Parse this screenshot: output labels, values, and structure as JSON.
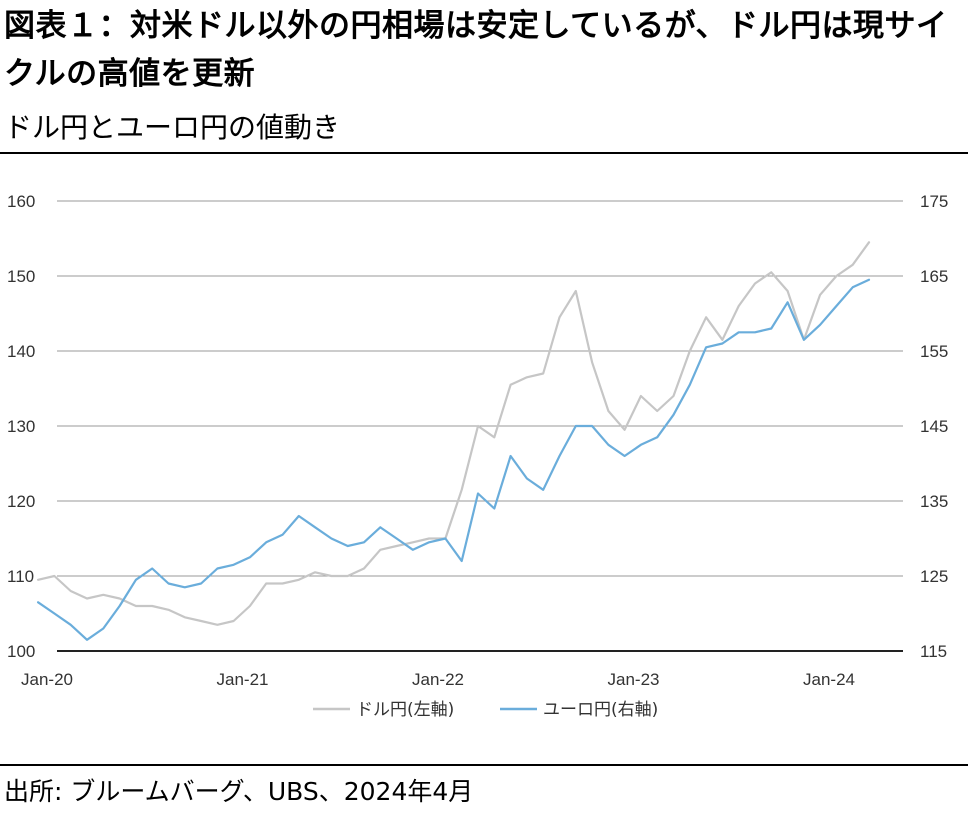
{
  "header": {
    "title": "図表１：対米ドル以外の円相場は安定しているが、ドル円は現サイクルの高値を更新",
    "subtitle": "ドル円とユーロ円の値動き"
  },
  "footer": {
    "source": "出所: ブルームバーグ、UBS、2024年4月"
  },
  "chart_data": {
    "type": "line",
    "x_tick_labels": [
      "Jan-20",
      "Jan-21",
      "Jan-22",
      "Jan-23",
      "Jan-24"
    ],
    "x_range": [
      "2020-01",
      "2024-04"
    ],
    "y_left": {
      "ticks": [
        100,
        110,
        120,
        130,
        140,
        150,
        160
      ],
      "ylim": [
        100,
        160
      ]
    },
    "y_right": {
      "ticks": [
        115,
        125,
        135,
        145,
        155,
        165,
        175
      ],
      "ylim": [
        115,
        175
      ]
    },
    "grid": true,
    "legend_position": "bottom",
    "series": [
      {
        "name": "ドル円(左軸)",
        "axis": "left",
        "color": "#c6c6c6",
        "x": [
          "2020-01",
          "2020-02",
          "2020-03",
          "2020-04",
          "2020-05",
          "2020-06",
          "2020-07",
          "2020-08",
          "2020-09",
          "2020-10",
          "2020-11",
          "2020-12",
          "2021-01",
          "2021-02",
          "2021-03",
          "2021-04",
          "2021-05",
          "2021-06",
          "2021-07",
          "2021-08",
          "2021-09",
          "2021-10",
          "2021-11",
          "2021-12",
          "2022-01",
          "2022-02",
          "2022-03",
          "2022-04",
          "2022-05",
          "2022-06",
          "2022-07",
          "2022-08",
          "2022-09",
          "2022-10",
          "2022-11",
          "2022-12",
          "2023-01",
          "2023-02",
          "2023-03",
          "2023-04",
          "2023-05",
          "2023-06",
          "2023-07",
          "2023-08",
          "2023-09",
          "2023-10",
          "2023-11",
          "2023-12",
          "2024-01",
          "2024-02",
          "2024-03",
          "2024-04"
        ],
        "values": [
          109.5,
          110.0,
          108.0,
          107.0,
          107.5,
          107.0,
          106.0,
          106.0,
          105.5,
          104.5,
          104.0,
          103.5,
          104.0,
          106.0,
          109.0,
          109.0,
          109.5,
          110.5,
          110.0,
          110.0,
          111.0,
          113.5,
          114.0,
          114.5,
          115.0,
          115.0,
          121.5,
          130.0,
          128.5,
          135.5,
          136.5,
          137.0,
          144.5,
          148.0,
          138.5,
          132.0,
          129.5,
          134.0,
          132.0,
          134.0,
          140.0,
          144.5,
          141.5,
          146.0,
          149.0,
          150.5,
          148.0,
          141.5,
          147.5,
          150.0,
          151.5,
          154.5
        ]
      },
      {
        "name": "ユーロ円(右軸)",
        "axis": "right",
        "color": "#6aaddb",
        "x": [
          "2020-01",
          "2020-02",
          "2020-03",
          "2020-04",
          "2020-05",
          "2020-06",
          "2020-07",
          "2020-08",
          "2020-09",
          "2020-10",
          "2020-11",
          "2020-12",
          "2021-01",
          "2021-02",
          "2021-03",
          "2021-04",
          "2021-05",
          "2021-06",
          "2021-07",
          "2021-08",
          "2021-09",
          "2021-10",
          "2021-11",
          "2021-12",
          "2022-01",
          "2022-02",
          "2022-03",
          "2022-04",
          "2022-05",
          "2022-06",
          "2022-07",
          "2022-08",
          "2022-09",
          "2022-10",
          "2022-11",
          "2022-12",
          "2023-01",
          "2023-02",
          "2023-03",
          "2023-04",
          "2023-05",
          "2023-06",
          "2023-07",
          "2023-08",
          "2023-09",
          "2023-10",
          "2023-11",
          "2023-12",
          "2024-01",
          "2024-02",
          "2024-03",
          "2024-04"
        ],
        "values": [
          121.5,
          120.0,
          118.5,
          116.5,
          118.0,
          121.0,
          124.5,
          126.0,
          124.0,
          123.5,
          124.0,
          126.0,
          126.5,
          127.5,
          129.5,
          130.5,
          133.0,
          131.5,
          130.0,
          129.0,
          129.5,
          131.5,
          130.0,
          128.5,
          129.5,
          130.0,
          127.0,
          136.0,
          134.0,
          141.0,
          138.0,
          136.5,
          141.0,
          145.0,
          145.0,
          142.5,
          141.0,
          142.5,
          143.5,
          146.5,
          150.5,
          155.5,
          156.0,
          157.5,
          157.5,
          158.0,
          161.5,
          156.5,
          158.5,
          161.0,
          163.5,
          164.5
        ]
      }
    ]
  }
}
